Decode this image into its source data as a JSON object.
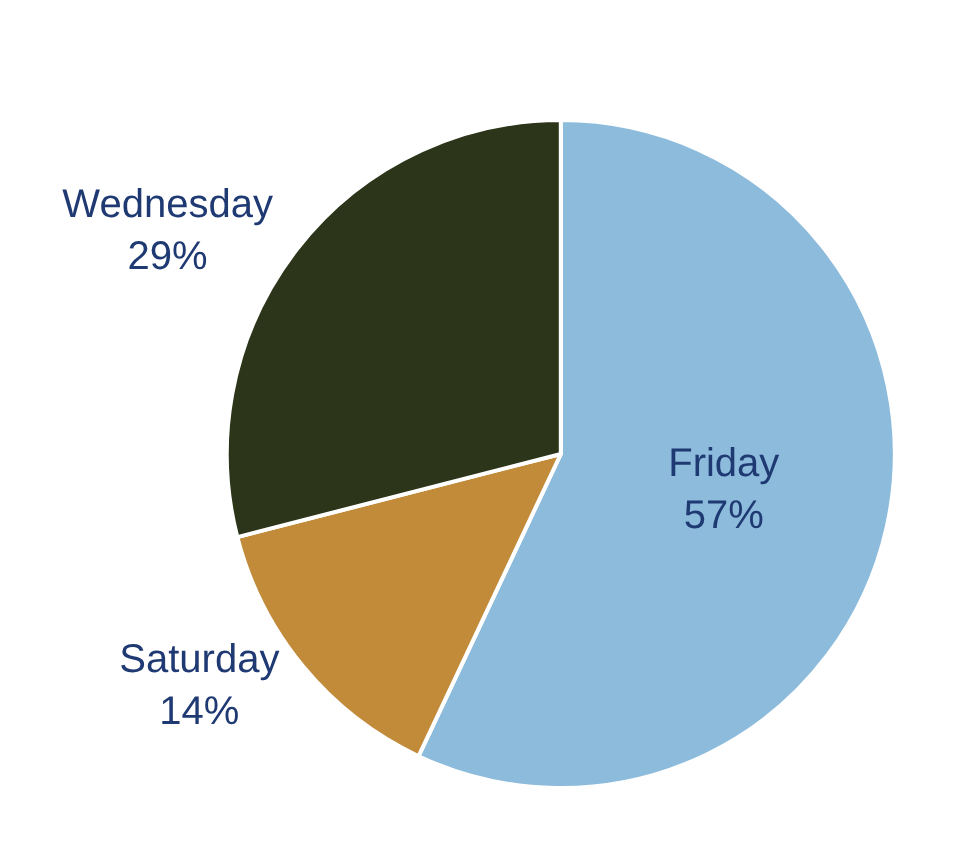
{
  "chart_data": {
    "type": "pie",
    "categories": [
      "Friday",
      "Saturday",
      "Wednesday"
    ],
    "values": [
      57,
      14,
      29
    ],
    "colors": [
      "#8dbbdc",
      "#c18b3a",
      "#2c3519"
    ],
    "value_labels": [
      "57%",
      "14%",
      "29%"
    ],
    "legend": false
  }
}
